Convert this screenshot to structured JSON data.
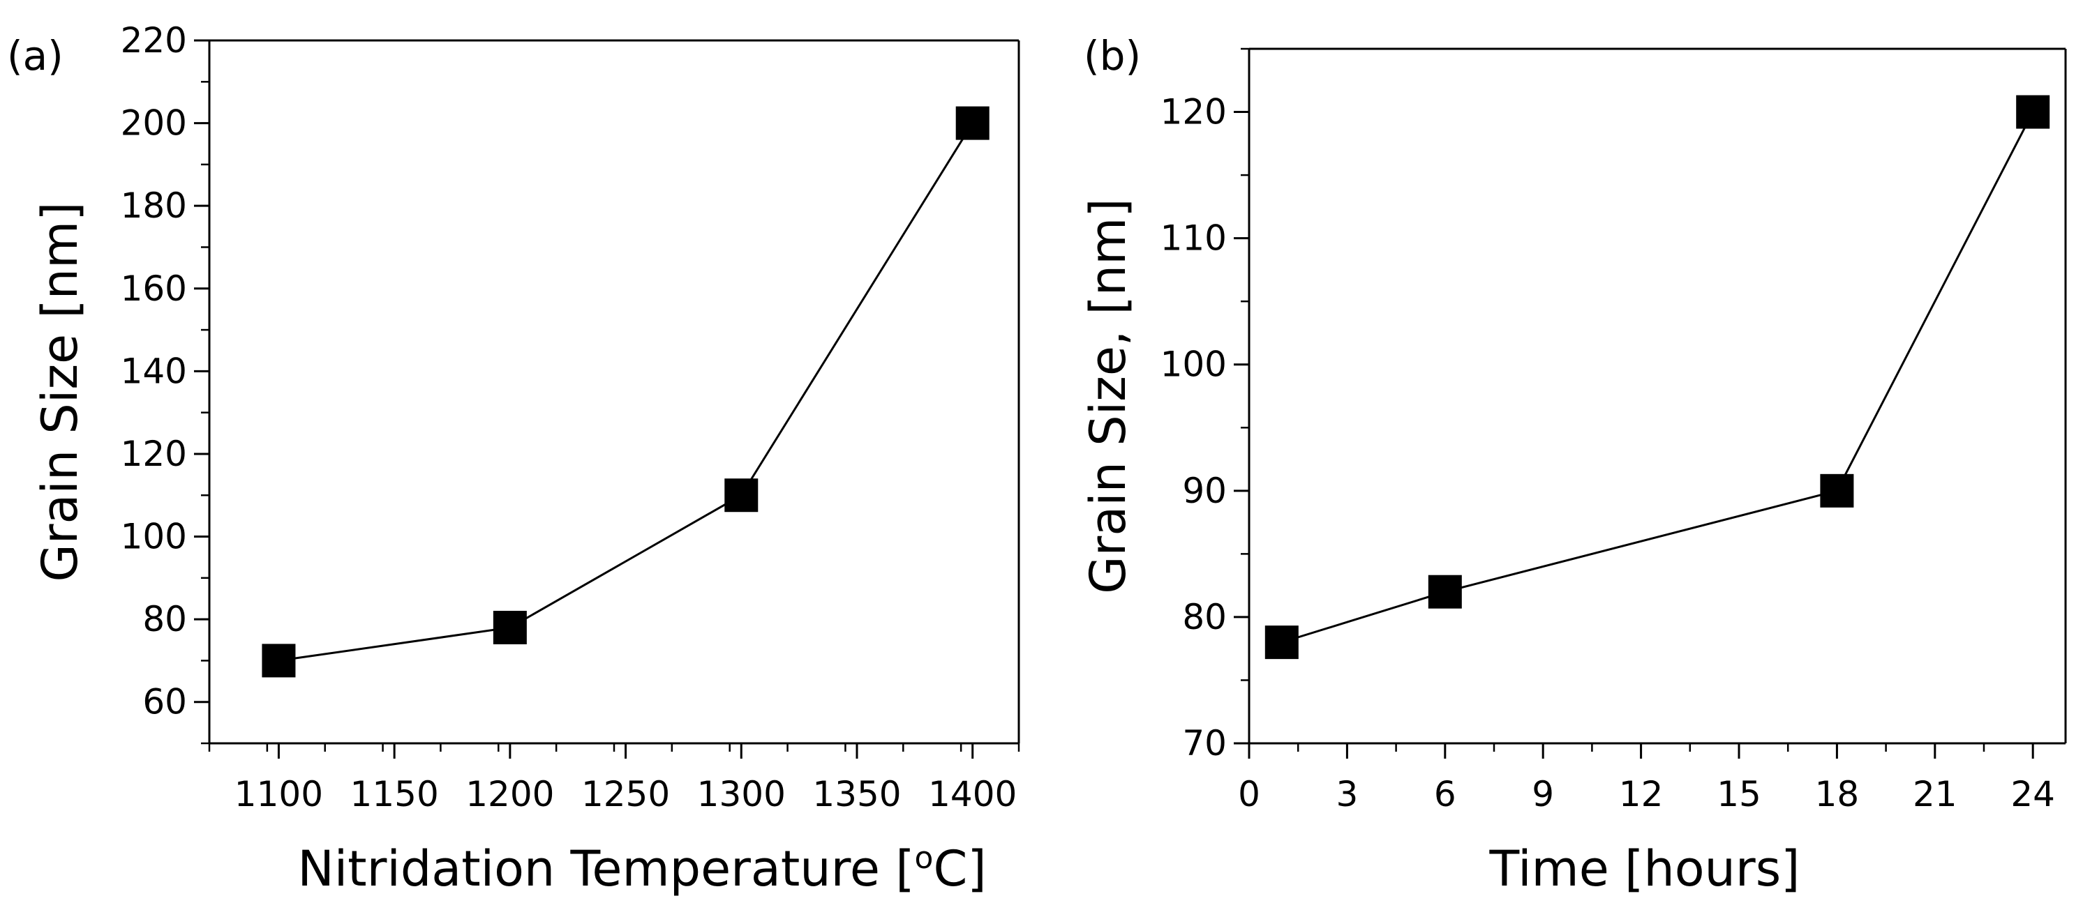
{
  "chart_data": [
    {
      "type": "line",
      "panel_label": "(a)",
      "title": "",
      "xlabel": "Nitridation Temperature [",
      "xlabel_unit_degree": "o",
      "xlabel_unit_suffix": "C]",
      "ylabel": "Grain Size [nm]",
      "xlim": [
        1070,
        1420
      ],
      "ylim": [
        50,
        220
      ],
      "xticks": [
        1100,
        1150,
        1200,
        1250,
        1300,
        1350,
        1400
      ],
      "yticks": [
        60,
        80,
        100,
        120,
        140,
        160,
        180,
        200,
        220
      ],
      "x_minor_step": 25,
      "y_minor_step": 10,
      "marker": "square",
      "color": "#000000",
      "series": [
        {
          "name": "Grain Size",
          "x": [
            1100,
            1200,
            1300,
            1400
          ],
          "y": [
            70,
            78,
            110,
            200
          ]
        }
      ]
    },
    {
      "type": "line",
      "panel_label": "(b)",
      "title": "",
      "xlabel": "Time [hours]",
      "ylabel": "Grain Size, [nm]",
      "xlim": [
        0,
        25
      ],
      "ylim": [
        70,
        125
      ],
      "xticks": [
        0,
        3,
        6,
        9,
        12,
        15,
        18,
        21,
        24
      ],
      "yticks": [
        70,
        80,
        90,
        100,
        110,
        120
      ],
      "x_minor_step": 1.5,
      "y_minor_step": 5,
      "marker": "square",
      "color": "#000000",
      "series": [
        {
          "name": "Grain Size",
          "x": [
            1,
            6,
            18,
            24
          ],
          "y": [
            78,
            82,
            90,
            120
          ]
        }
      ]
    }
  ]
}
